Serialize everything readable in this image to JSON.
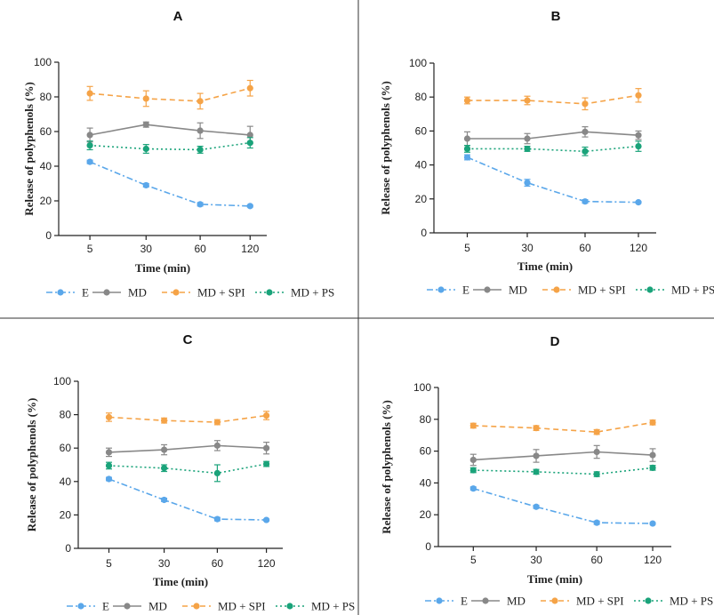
{
  "chart_data": [
    {
      "type": "line",
      "panel_label": "A",
      "xlabel": "Time (min)",
      "ylabel": "Release of polyphenols (%)",
      "categories": [
        "5",
        "30",
        "60",
        "120"
      ],
      "ylim": [
        0,
        100
      ],
      "yticks": [
        "0",
        "20",
        "40",
        "60",
        "80",
        "100"
      ],
      "grid": false,
      "legend_position": "bottom",
      "series": [
        {
          "name": "E",
          "values": [
            42.5,
            29,
            18,
            17
          ],
          "errors": [
            1,
            1,
            1,
            0.5
          ],
          "color": "#5aa7ea",
          "dash": "dash-dot"
        },
        {
          "name": "MD",
          "values": [
            58,
            64,
            60.5,
            58
          ],
          "errors": [
            4,
            1.5,
            4.5,
            5
          ],
          "color": "#888888",
          "dash": "solid"
        },
        {
          "name": "MD + SPI",
          "values": [
            82,
            79,
            77.5,
            85
          ],
          "errors": [
            4,
            4.5,
            4.5,
            4.5
          ],
          "color": "#f5a347",
          "dash": "dashed"
        },
        {
          "name": "MD + PS",
          "values": [
            52,
            50,
            49.5,
            53.5
          ],
          "errors": [
            2.5,
            2.5,
            2,
            3
          ],
          "color": "#1aa37a",
          "dash": "dotted"
        }
      ]
    },
    {
      "type": "line",
      "panel_label": "B",
      "xlabel": "Time (min)",
      "ylabel": "Release of polyphenols (%)",
      "categories": [
        "5",
        "30",
        "60",
        "120"
      ],
      "ylim": [
        0,
        100
      ],
      "yticks": [
        "0",
        "20",
        "40",
        "60",
        "80",
        "100"
      ],
      "grid": false,
      "legend_position": "bottom",
      "series": [
        {
          "name": "E",
          "values": [
            44.5,
            29.5,
            18.5,
            18
          ],
          "errors": [
            1.5,
            2,
            1,
            0.5
          ],
          "color": "#5aa7ea",
          "dash": "dash-dot"
        },
        {
          "name": "MD",
          "values": [
            55.5,
            55.5,
            59.5,
            57.5
          ],
          "errors": [
            4,
            3,
            3,
            2.5
          ],
          "color": "#888888",
          "dash": "solid"
        },
        {
          "name": "MD + SPI",
          "values": [
            78,
            78,
            76,
            81
          ],
          "errors": [
            2,
            2.5,
            3.5,
            4
          ],
          "color": "#f5a347",
          "dash": "dashed"
        },
        {
          "name": "MD + PS",
          "values": [
            49.5,
            49.5,
            48,
            51
          ],
          "errors": [
            2,
            1.5,
            2.5,
            3
          ],
          "color": "#1aa37a",
          "dash": "dotted"
        }
      ]
    },
    {
      "type": "line",
      "panel_label": "C",
      "xlabel": "Time (min)",
      "ylabel": "Release of polyphenols (%)",
      "categories": [
        "5",
        "30",
        "60",
        "120"
      ],
      "ylim": [
        0,
        100
      ],
      "yticks": [
        "0",
        "20",
        "40",
        "60",
        "80",
        "100"
      ],
      "grid": false,
      "legend_position": "bottom",
      "series": [
        {
          "name": "E",
          "values": [
            41.5,
            29,
            17.5,
            17
          ],
          "errors": [
            1,
            1,
            1,
            0.5
          ],
          "color": "#5aa7ea",
          "dash": "dash-dot"
        },
        {
          "name": "MD",
          "values": [
            57.5,
            59,
            61.5,
            60
          ],
          "errors": [
            2.5,
            3,
            3,
            3.5
          ],
          "color": "#888888",
          "dash": "solid"
        },
        {
          "name": "MD + SPI",
          "values": [
            78.5,
            76.5,
            75.5,
            79.5
          ],
          "errors": [
            2.5,
            1.5,
            1.5,
            2.5
          ],
          "color": "#f5a347",
          "dash": "dashed"
        },
        {
          "name": "MD + PS",
          "values": [
            49.5,
            48,
            45,
            50.5
          ],
          "errors": [
            2,
            2,
            5,
            1.5
          ],
          "color": "#1aa37a",
          "dash": "dotted"
        }
      ]
    },
    {
      "type": "line",
      "panel_label": "D",
      "xlabel": "Time (min)",
      "ylabel": "Release of polyphenols (%)",
      "categories": [
        "5",
        "30",
        "60",
        "120"
      ],
      "ylim": [
        0,
        100
      ],
      "yticks": [
        "0",
        "20",
        "40",
        "60",
        "80",
        "100"
      ],
      "grid": false,
      "legend_position": "bottom",
      "series": [
        {
          "name": "E",
          "values": [
            36.5,
            25,
            15,
            14.5
          ],
          "errors": [
            1,
            1,
            1,
            0.5
          ],
          "color": "#5aa7ea",
          "dash": "dash-dot"
        },
        {
          "name": "MD",
          "values": [
            54.5,
            57,
            59.5,
            57.5
          ],
          "errors": [
            3.5,
            4,
            4,
            4
          ],
          "color": "#888888",
          "dash": "solid"
        },
        {
          "name": "MD + SPI",
          "values": [
            76,
            74.5,
            72,
            78
          ],
          "errors": [
            1.5,
            1.5,
            1.5,
            1.5
          ],
          "color": "#f5a347",
          "dash": "dashed"
        },
        {
          "name": "MD + PS",
          "values": [
            48,
            47,
            45.5,
            49.5
          ],
          "errors": [
            1.5,
            1.5,
            1.5,
            1.5
          ],
          "color": "#1aa37a",
          "dash": "dotted"
        }
      ]
    }
  ]
}
